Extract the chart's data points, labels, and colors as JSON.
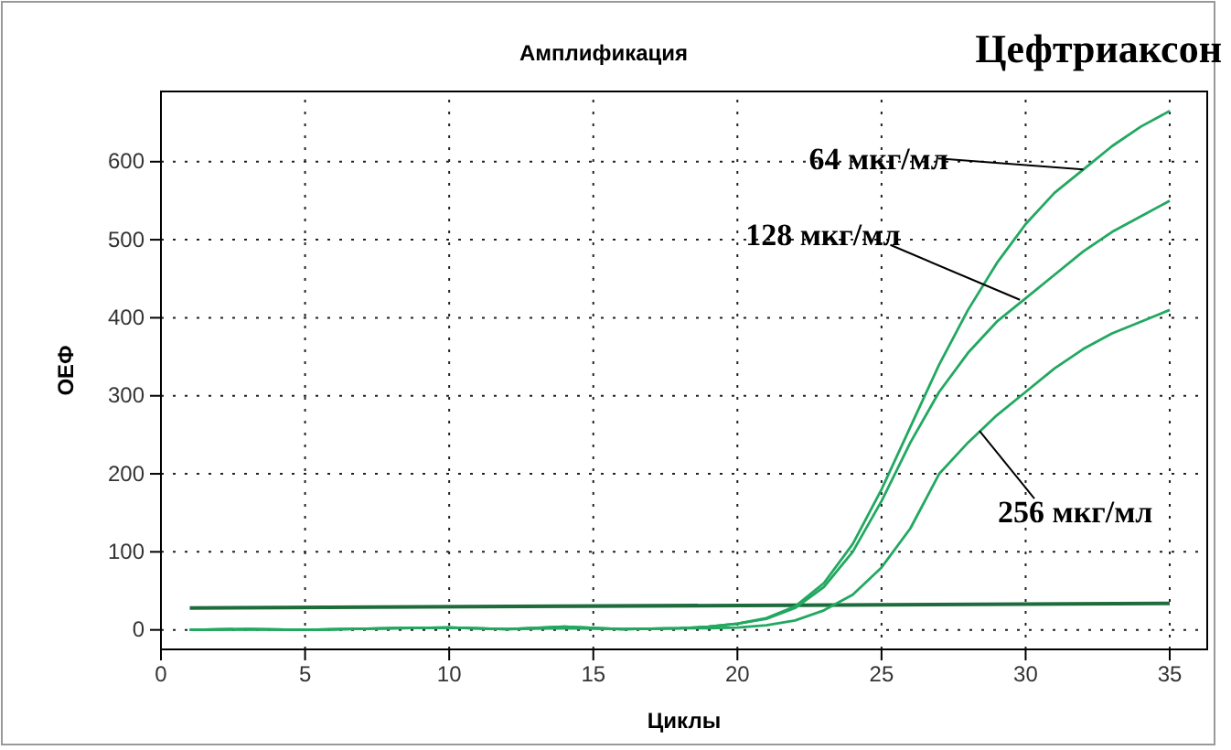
{
  "chart_data": {
    "type": "line",
    "title": "Амплификация",
    "subtitle": "Цефтриаксон",
    "xlabel": "Циклы",
    "ylabel": "ОЕФ",
    "xlim": [
      0,
      36.3
    ],
    "ylim": [
      -25,
      690
    ],
    "xticks": [
      0,
      5,
      10,
      15,
      20,
      25,
      30,
      35
    ],
    "yticks": [
      0,
      100,
      200,
      300,
      400,
      500,
      600
    ],
    "grid": true,
    "line_style": "solid",
    "marker": "none",
    "series": [
      {
        "color": "#1e6b3c",
        "x": [
          1,
          35
        ],
        "values": [
          28,
          34
        ]
      },
      {
        "color": "#22a860",
        "x": [
          1,
          3,
          5,
          8,
          10,
          12,
          14,
          16,
          18,
          19,
          20,
          21,
          22,
          23,
          24,
          25,
          26,
          27,
          28,
          29,
          30,
          31,
          32,
          33,
          34,
          35
        ],
        "values": [
          0,
          1,
          0,
          2,
          3,
          1,
          4,
          1,
          2,
          4,
          8,
          15,
          30,
          60,
          110,
          180,
          260,
          340,
          410,
          470,
          520,
          560,
          590,
          620,
          645,
          665
        ]
      },
      {
        "color": "#22a860",
        "x": [
          1,
          3,
          5,
          8,
          10,
          12,
          14,
          16,
          18,
          19,
          20,
          21,
          22,
          23,
          24,
          25,
          26,
          27,
          28,
          29,
          30,
          31,
          32,
          33,
          34,
          35
        ],
        "values": [
          0,
          1,
          0,
          2,
          3,
          1,
          4,
          1,
          2,
          4,
          8,
          14,
          28,
          55,
          100,
          165,
          240,
          305,
          355,
          395,
          425,
          455,
          485,
          510,
          530,
          550
        ]
      },
      {
        "color": "#22a860",
        "x": [
          1,
          3,
          5,
          8,
          10,
          12,
          14,
          16,
          18,
          19,
          20,
          21,
          22,
          23,
          24,
          25,
          26,
          27,
          28,
          29,
          30,
          31,
          32,
          33,
          34,
          35
        ],
        "values": [
          0,
          1,
          0,
          2,
          3,
          1,
          2,
          1,
          2,
          2,
          3,
          6,
          12,
          25,
          45,
          80,
          130,
          200,
          240,
          275,
          305,
          335,
          360,
          380,
          395,
          410
        ]
      }
    ],
    "annotations": [
      {
        "text": "64 мкг/мл",
        "x": 32,
        "y": 590
      },
      {
        "text": "128 мкг/мл",
        "x": 29.8,
        "y": 423
      },
      {
        "text": "256 мкг/мл",
        "x": 28.4,
        "y": 255
      }
    ]
  }
}
